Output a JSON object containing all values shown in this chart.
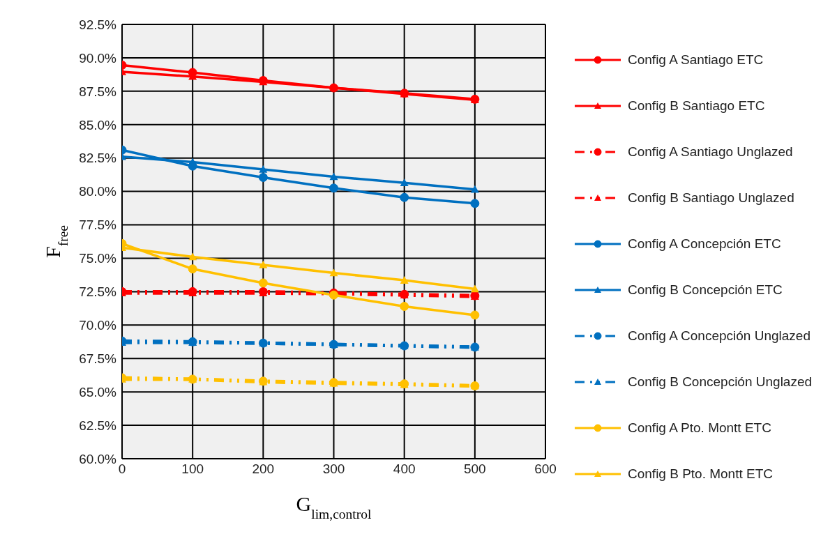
{
  "chart_data": {
    "type": "line",
    "xlabel": "G$_{lim,control}$",
    "ylabel": "F$_{free}$",
    "x": [
      0,
      100,
      200,
      300,
      400,
      500
    ],
    "xlim": [
      0,
      600
    ],
    "xticks": [
      0,
      100,
      200,
      300,
      400,
      500,
      600
    ],
    "ylim": [
      60,
      92.5
    ],
    "yticks": [
      {
        "value": 60,
        "label": "60.0%"
      },
      {
        "value": 62.5,
        "label": "62.5%"
      },
      {
        "value": 65,
        "label": "65.0%"
      },
      {
        "value": 67.5,
        "label": "67.5%"
      },
      {
        "value": 70,
        "label": "70.0%"
      },
      {
        "value": 72.5,
        "label": "72.5%"
      },
      {
        "value": 75,
        "label": "75.0%"
      },
      {
        "value": 77.5,
        "label": "77.5%"
      },
      {
        "value": 80,
        "label": "80.0%"
      },
      {
        "value": 82.5,
        "label": "82.5%"
      },
      {
        "value": 85,
        "label": "85.0%"
      },
      {
        "value": 87.5,
        "label": "87.5%"
      },
      {
        "value": 90,
        "label": "90.0%"
      },
      {
        "value": 92.5,
        "label": "92.5%"
      }
    ],
    "grid": true,
    "legend": "right",
    "series": [
      {
        "name": "Config A Santiago ETC",
        "color": "#ff0000",
        "marker": "circle",
        "line_style": "solid",
        "values": [
          89.45,
          88.9,
          88.3,
          87.75,
          87.35,
          86.9
        ]
      },
      {
        "name": "Config B Santiago ETC",
        "color": "#ff0000",
        "marker": "triangle",
        "line_style": "solid",
        "values": [
          88.95,
          88.6,
          88.2,
          87.75,
          87.3,
          86.85
        ]
      },
      {
        "name": "Config A Santiago Unglazed",
        "color": "#ff0000",
        "marker": "circle",
        "line_style": "dashed",
        "values": [
          72.5,
          72.5,
          72.5,
          72.4,
          72.3,
          72.2
        ]
      },
      {
        "name": "Config B Santiago Unglazed",
        "color": "#ff0000",
        "marker": "triangle",
        "line_style": "dashed",
        "values": [
          72.4,
          72.4,
          72.4,
          72.35,
          72.25,
          72.15
        ]
      },
      {
        "name": "Config A Concepción ETC",
        "color": "#0070c0",
        "marker": "circle",
        "line_style": "solid",
        "values": [
          83.1,
          81.9,
          81.05,
          80.25,
          79.55,
          79.1
        ]
      },
      {
        "name": "Config B Concepción ETC",
        "color": "#0070c0",
        "marker": "triangle",
        "line_style": "solid",
        "values": [
          82.6,
          82.2,
          81.65,
          81.1,
          80.65,
          80.15
        ]
      },
      {
        "name": "Config A Concepción Unglazed",
        "color": "#0070c0",
        "marker": "circle",
        "line_style": "dashed",
        "values": [
          68.8,
          68.75,
          68.65,
          68.55,
          68.45,
          68.35
        ]
      },
      {
        "name": "Config B Concepción Unglazed",
        "color": "#0070c0",
        "marker": "triangle",
        "line_style": "dashed",
        "values": [
          68.7,
          68.7,
          68.65,
          68.55,
          68.45,
          68.35
        ]
      },
      {
        "name": "Config A Pto. Montt ETC",
        "color": "#ffc000",
        "marker": "circle",
        "line_style": "solid",
        "values": [
          76.1,
          74.2,
          73.15,
          72.25,
          71.4,
          70.75
        ]
      },
      {
        "name": "Config B Pto. Montt ETC",
        "color": "#ffc000",
        "marker": "triangle",
        "line_style": "solid",
        "values": [
          75.8,
          75.1,
          74.5,
          73.9,
          73.35,
          72.7
        ]
      },
      {
        "color": "#ffc000",
        "marker": "circle",
        "line_style": "dashed",
        "values": [
          66.05,
          65.95,
          65.8,
          65.7,
          65.6,
          65.45
        ]
      },
      {
        "color": "#ffc000",
        "marker": "triangle",
        "line_style": "dashed",
        "values": [
          65.95,
          65.95,
          65.75,
          65.65,
          65.55,
          65.45
        ]
      }
    ]
  }
}
